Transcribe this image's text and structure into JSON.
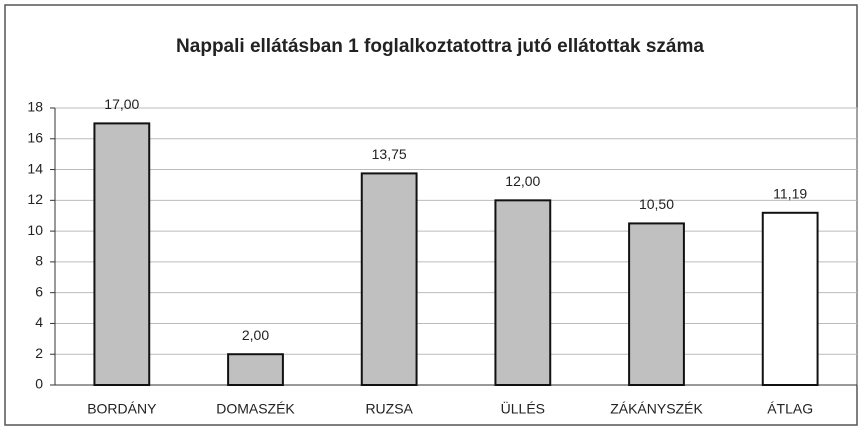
{
  "chart_data": {
    "type": "bar",
    "title": "Nappali ellátásban 1 foglalkoztatottra jutó ellátottak száma",
    "categories": [
      "BORDÁNY",
      "DOMASZÉK",
      "RUZSA",
      "ÜLLÉS",
      "ZÁKÁNYSZÉK",
      "ÁTLAG"
    ],
    "values": [
      17,
      2,
      13.75,
      12,
      10.5,
      11.19
    ],
    "value_labels": [
      "17,00",
      "2,00",
      "13,75",
      "12,00",
      "10,50",
      "11,19"
    ],
    "colors": [
      "#c0c0c0",
      "#c0c0c0",
      "#c0c0c0",
      "#c0c0c0",
      "#c0c0c0",
      "#ffffff"
    ],
    "ylim": [
      0,
      18
    ],
    "yticks": [
      0,
      2,
      4,
      6,
      8,
      10,
      12,
      14,
      16,
      18
    ],
    "grid": true
  }
}
